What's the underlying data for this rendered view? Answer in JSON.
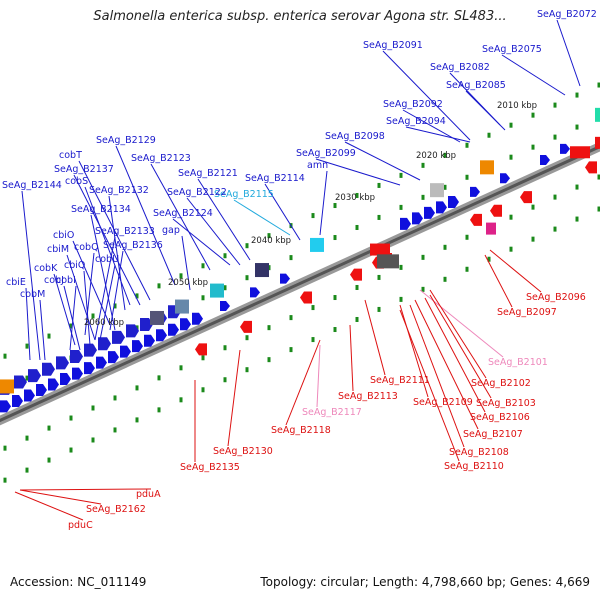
{
  "title": "Salmonella enterica subsp. enterica serovar Agona str. SL483...",
  "footer": {
    "accession": "Accession: NC_011149",
    "summary": "Topology: circular; Length: 4,798,660 bp; Genes: 4,669"
  },
  "colors": {
    "forward_label": "#1a1acc",
    "reverse_label": "#dd1111",
    "pseudo_forward": "#22aadd",
    "pseudo_reverse": "#ee88bb",
    "backbone": "#777777",
    "tick": "#1b8a1b"
  },
  "scale_labels": [
    "2010 kbp",
    "2020 kbp",
    "2030 kbp",
    "2040 kbp",
    "2050 kbp",
    "2060 kbp"
  ],
  "forward_labels": [
    "SeAg_B2072",
    "SeAg_B2075",
    "SeAg_B2091",
    "SeAg_B2082",
    "SeAg_B2085",
    "SeAg_B2092",
    "SeAg_B2094",
    "SeAg_B2098",
    "SeAg_B2099",
    "amn",
    "SeAg_B2114",
    "SeAg_B2115",
    "SeAg_B2121",
    "SeAg_B2122",
    "SeAg_B2124",
    "SeAg_B2123",
    "SeAg_B2129",
    "cobT",
    "SeAg_B2137",
    "cobS",
    "SeAg_B2132",
    "SeAg_B2144",
    "cbiO",
    "SeAg_B2134",
    "cbiM",
    "cobQ",
    "SeAg_B2133",
    "gap",
    "SeAg_B2136",
    "cbiQ",
    "cobU",
    "cobK",
    "cobJ",
    "cobI",
    "cbiE",
    "cobM"
  ],
  "reverse_labels": [
    "SeAg_B2096",
    "SeAg_B2097",
    "SeAg_B2101",
    "SeAg_B2111",
    "SeAg_B2102",
    "SeAg_B2113",
    "SeAg_B2109",
    "SeAg_B2103",
    "SeAg_B2106",
    "SeAg_B2117",
    "SeAg_B2107",
    "SeAg_B2118",
    "SeAg_B2108",
    "SeAg_B2110",
    "SeAg_B2130",
    "SeAg_B2135",
    "pduA",
    "SeAg_B2162",
    "pduC"
  ]
}
